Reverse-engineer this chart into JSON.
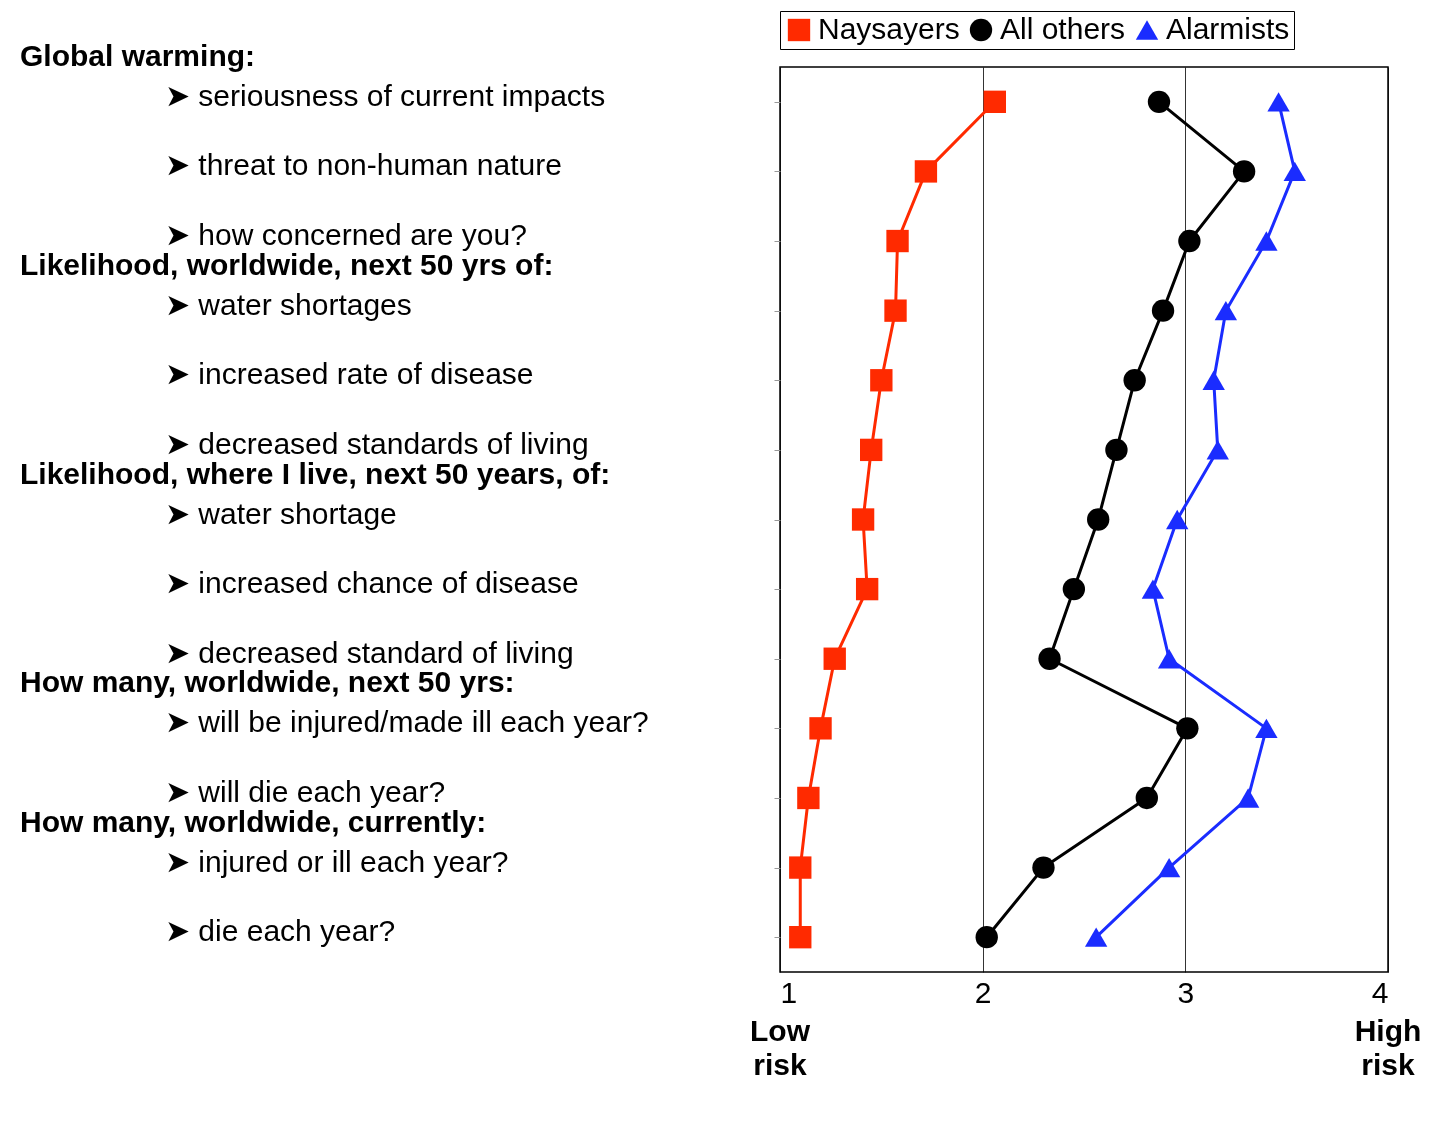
{
  "chart_data": {
    "type": "line",
    "orientation": "horizontal",
    "categories": [
      "➤ seriousness of current impacts",
      "➤ threat to non-human nature",
      "➤ how concerned are you?",
      "➤ water shortages",
      "➤ increased rate of disease",
      "➤ decreased standards of living",
      "➤ water shortage",
      "➤ increased chance of disease",
      "➤ decreased standard of living",
      "➤ will be injured/made ill each year?",
      "➤ will die each year?",
      "➤ injured or ill each year?",
      "➤ die each year?"
    ],
    "series": [
      {
        "name": "Naysayers",
        "color": "#ff2a00",
        "marker": "square",
        "values": [
          2.06,
          1.72,
          1.58,
          1.57,
          1.5,
          1.45,
          1.41,
          1.43,
          1.27,
          1.2,
          1.14,
          1.1,
          1.1
        ]
      },
      {
        "name": "All others",
        "color": "#000000",
        "marker": "circle",
        "values": [
          2.87,
          3.29,
          3.02,
          2.89,
          2.75,
          2.66,
          2.57,
          2.45,
          2.33,
          3.01,
          2.81,
          2.3,
          2.02
        ]
      },
      {
        "name": "Alarmists",
        "color": "#1a2cff",
        "marker": "triangle",
        "values": [
          3.46,
          3.54,
          3.4,
          3.2,
          3.14,
          3.16,
          2.96,
          2.84,
          2.92,
          3.4,
          3.31,
          2.92,
          2.56
        ]
      }
    ],
    "xlim": [
      1,
      4
    ],
    "xticks": [
      1,
      2,
      3,
      {
        "value": 4,
        "label": "4"
      }
    ],
    "annotations": [
      "Global warming:",
      "Likelihood, worldwide, next 50 yrs of:",
      "Likelihood, where I live, next 50 years, of:",
      "How many, worldwide, next 50 yrs:",
      "How many, worldwide, currently:",
      "Low risk",
      "High risk"
    ],
    "grid": "x",
    "legend": "top",
    "line_style": "solid",
    "tick_labels": "x"
  }
}
